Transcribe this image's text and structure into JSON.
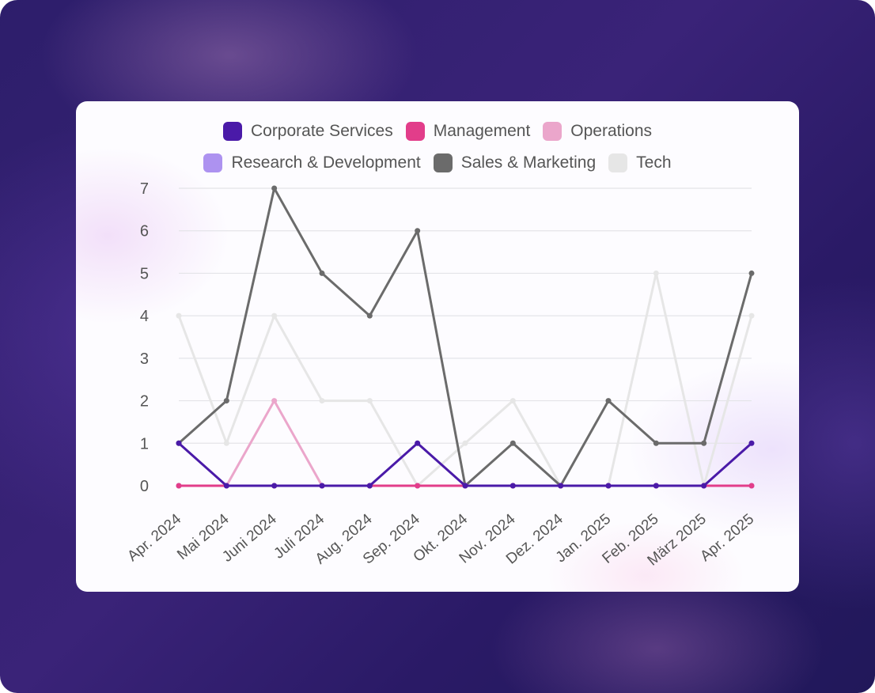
{
  "chart_data": {
    "type": "line",
    "categories": [
      "Apr. 2024",
      "Mai 2024",
      "Juni 2024",
      "Juli 2024",
      "Aug. 2024",
      "Sep. 2024",
      "Okt. 2024",
      "Nov. 2024",
      "Dez. 2024",
      "Jan. 2025",
      "Feb. 2025",
      "März 2025",
      "Apr. 2025"
    ],
    "ylim": [
      0,
      7
    ],
    "yticks": [
      "0",
      "1",
      "2",
      "3",
      "4",
      "5",
      "6",
      "7"
    ],
    "grid": true,
    "legend_position": "top-center",
    "series": [
      {
        "name": "Corporate Services",
        "color": "#4a1aa8",
        "values": [
          1,
          0,
          0,
          0,
          0,
          1,
          0,
          0,
          0,
          0,
          0,
          0,
          1
        ]
      },
      {
        "name": "Management",
        "color": "#e23d8a",
        "values": [
          0,
          0,
          0,
          0,
          0,
          0,
          0,
          0,
          0,
          0,
          0,
          0,
          0
        ]
      },
      {
        "name": "Operations",
        "color": "#eba6cb",
        "values": [
          0,
          0,
          2,
          0,
          0,
          0,
          0,
          0,
          0,
          0,
          0,
          0,
          0
        ]
      },
      {
        "name": "Research & Development",
        "color": "#ad92f0",
        "values": [
          0,
          0,
          0,
          0,
          0,
          0,
          0,
          0,
          0,
          0,
          0,
          0,
          0
        ]
      },
      {
        "name": "Sales & Marketing",
        "color": "#6b6b6b",
        "values": [
          1,
          2,
          7,
          5,
          4,
          6,
          0,
          1,
          0,
          2,
          1,
          1,
          5
        ]
      },
      {
        "name": "Tech",
        "color": "#e6e6e6",
        "values": [
          4,
          1,
          4,
          2,
          2,
          0,
          1,
          2,
          0,
          0,
          5,
          0,
          4
        ]
      }
    ]
  }
}
